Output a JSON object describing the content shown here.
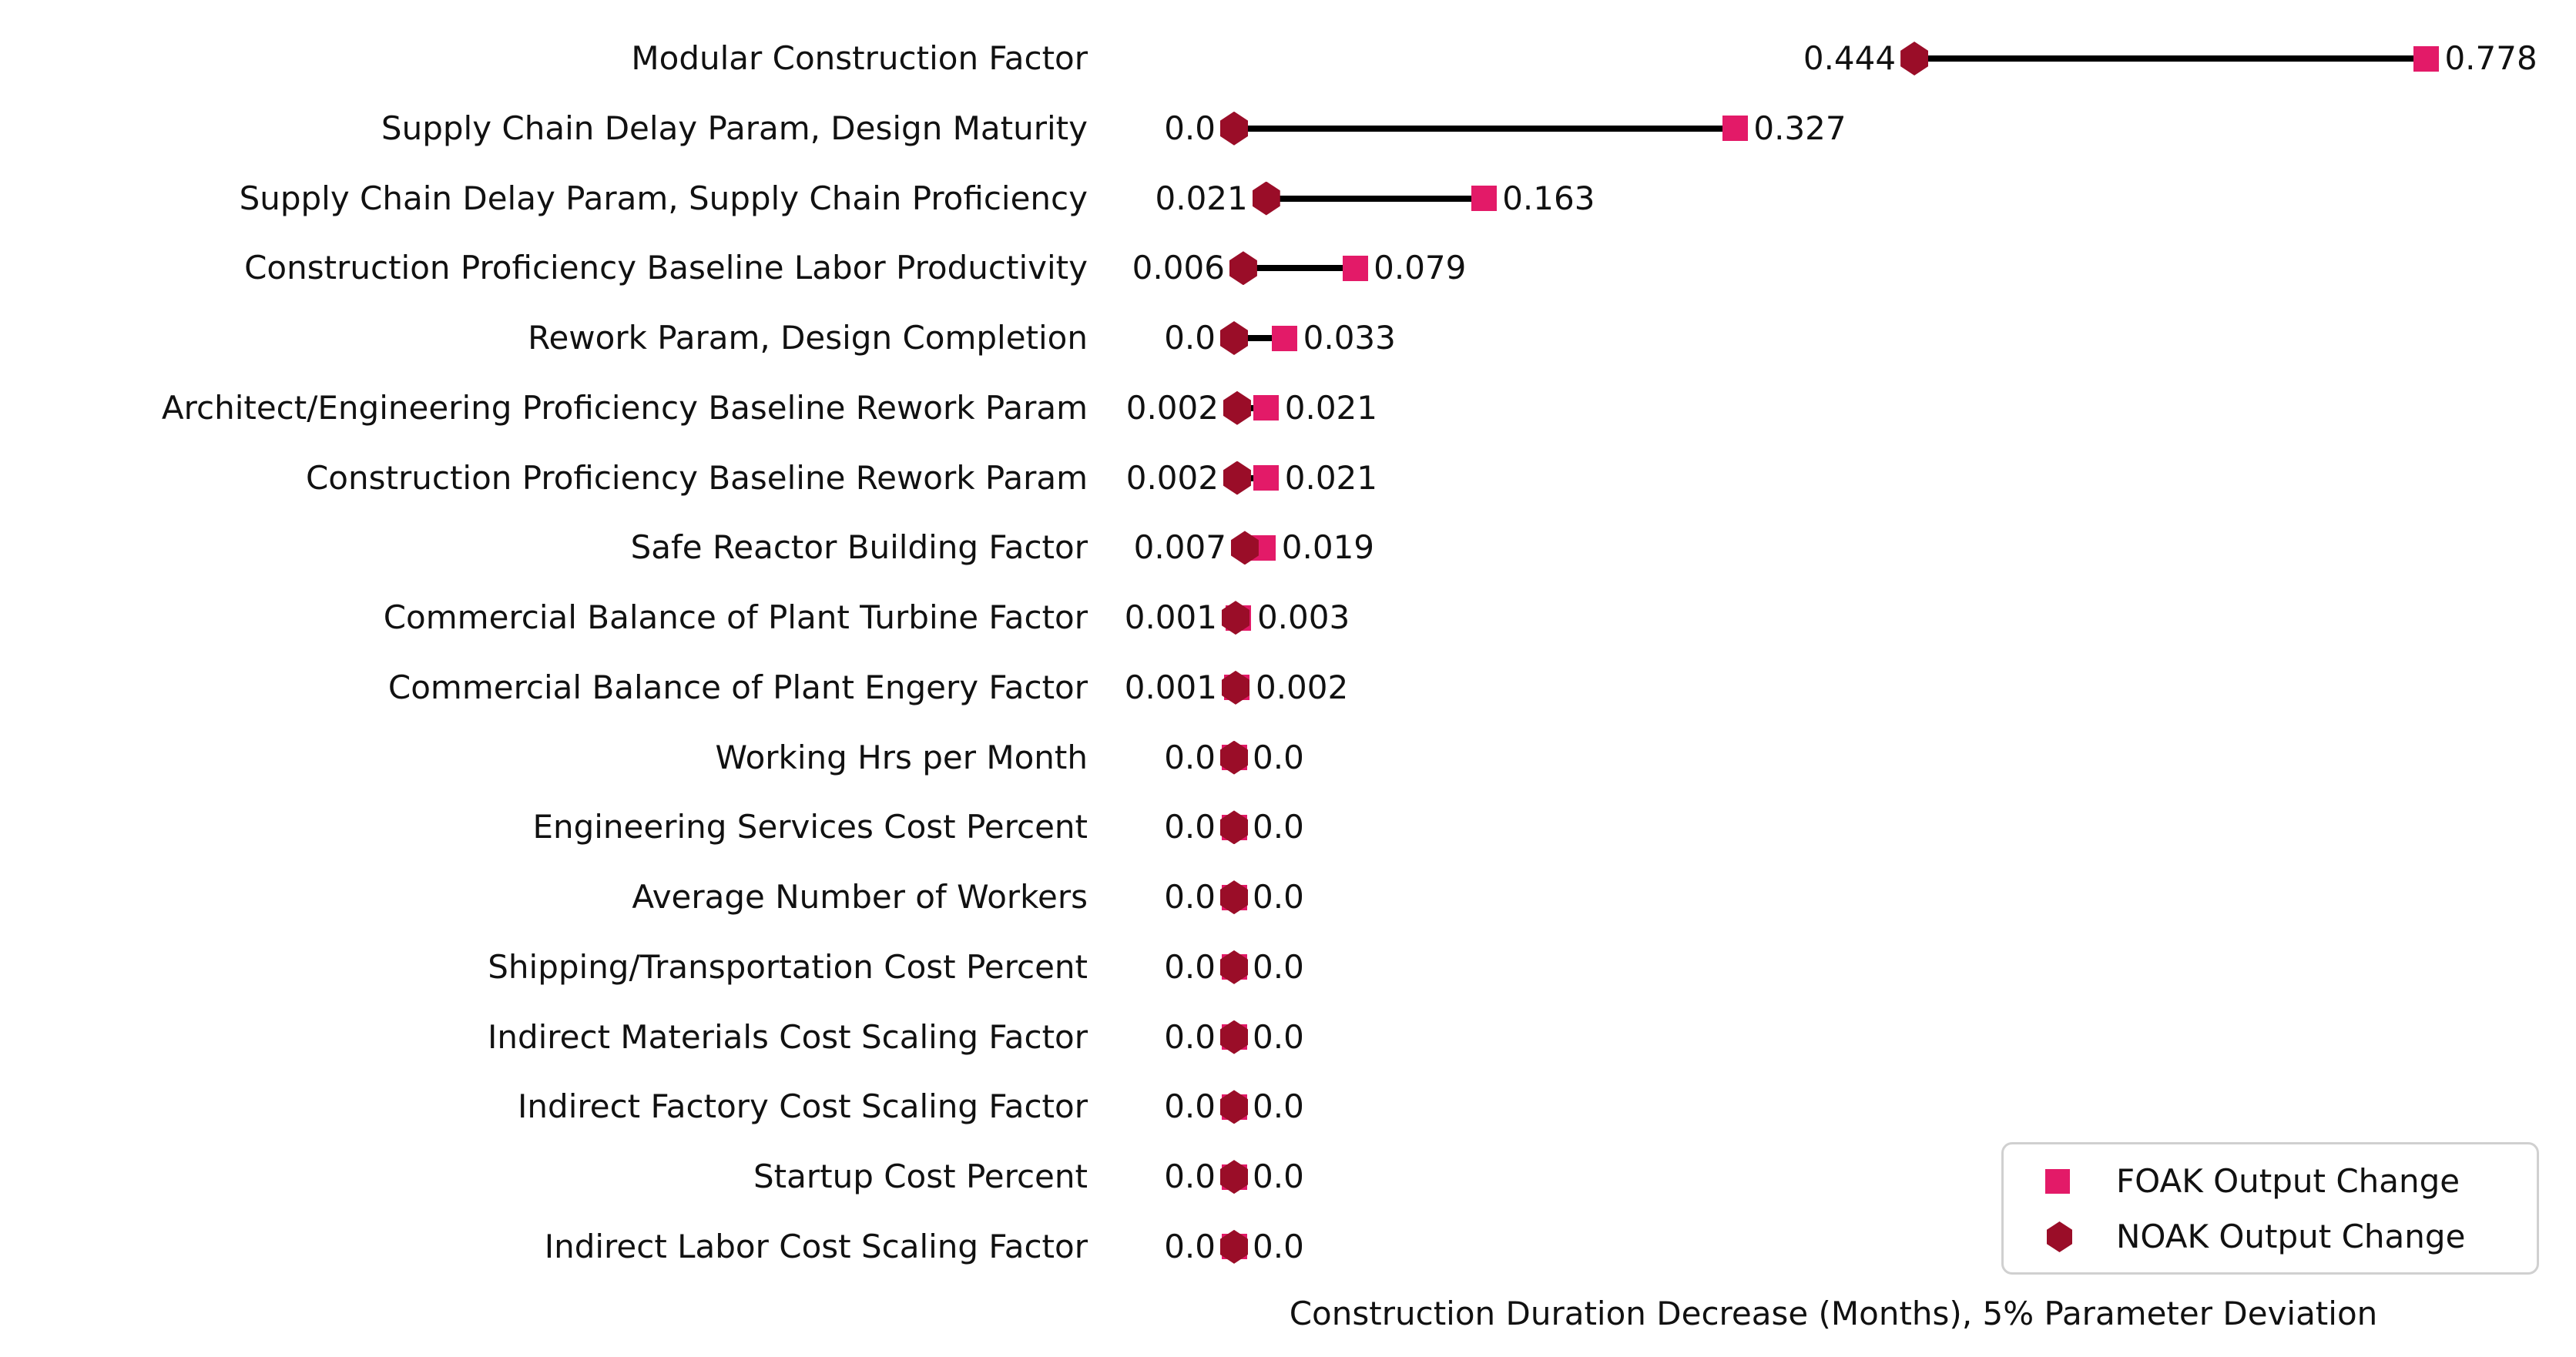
{
  "chart_data": {
    "type": "scatter",
    "variant": "dumbbell-lollipop",
    "title": "",
    "xlabel": "Construction Duration Decrease (Months), 5% Parameter Deviation",
    "ylabel": "",
    "categories": [
      "Modular Construction Factor",
      "Supply Chain Delay Param, Design Maturity",
      "Supply Chain Delay Param, Supply Chain Proficiency",
      "Construction Proficiency Baseline Labor Productivity",
      "Rework Param, Design Completion",
      "Architect/Engineering Proficiency Baseline Rework Param",
      "Construction Proficiency Baseline Rework Param",
      "Safe Reactor Building Factor",
      "Commercial Balance of Plant Turbine Factor",
      "Commercial Balance of Plant Engery Factor",
      "Working Hrs per Month",
      "Engineering Services Cost Percent",
      "Average Number of Workers",
      "Shipping/Transportation Cost Percent",
      "Indirect Materials Cost Scaling Factor",
      "Indirect Factory Cost Scaling Factor",
      "Startup Cost Percent",
      "Indirect Labor Cost Scaling Factor"
    ],
    "series": [
      {
        "name": "FOAK Output Change",
        "marker": "square",
        "color": "#E31A68",
        "values": [
          0.778,
          0.327,
          0.163,
          0.079,
          0.033,
          0.021,
          0.021,
          0.019,
          0.003,
          0.002,
          0.0,
          0.0,
          0.0,
          0.0,
          0.0,
          0.0,
          0.0,
          0.0
        ],
        "labels": [
          "0.778",
          "0.327",
          "0.163",
          "0.079",
          "0.033",
          "0.021",
          "0.021",
          "0.019",
          "0.003",
          "0.002",
          "0.0",
          "0.0",
          "0.0",
          "0.0",
          "0.0",
          "0.0",
          "0.0",
          "0.0"
        ]
      },
      {
        "name": "NOAK Output Change",
        "marker": "hexagon",
        "color": "#9A0D28",
        "values": [
          0.444,
          0.0,
          0.021,
          0.006,
          0.0,
          0.002,
          0.002,
          0.007,
          0.001,
          0.001,
          0.0,
          0.0,
          0.0,
          0.0,
          0.0,
          0.0,
          0.0,
          0.0
        ],
        "labels": [
          "0.444",
          "0.0",
          "0.021",
          "0.006",
          "0.0",
          "0.002",
          "0.002",
          "0.007",
          "0.001",
          "0.001",
          "0.0",
          "0.0",
          "0.0",
          "0.0",
          "0.0",
          "0.0",
          "0.0",
          "0.0"
        ]
      }
    ],
    "connector_color": "#000000",
    "value_labels_shown": true,
    "grid": false,
    "axis_spines_shown": false,
    "xlim": [
      -0.09,
      0.87
    ],
    "legend_position": "lower right",
    "background_color": "#ffffff",
    "text_color": "#111111"
  }
}
